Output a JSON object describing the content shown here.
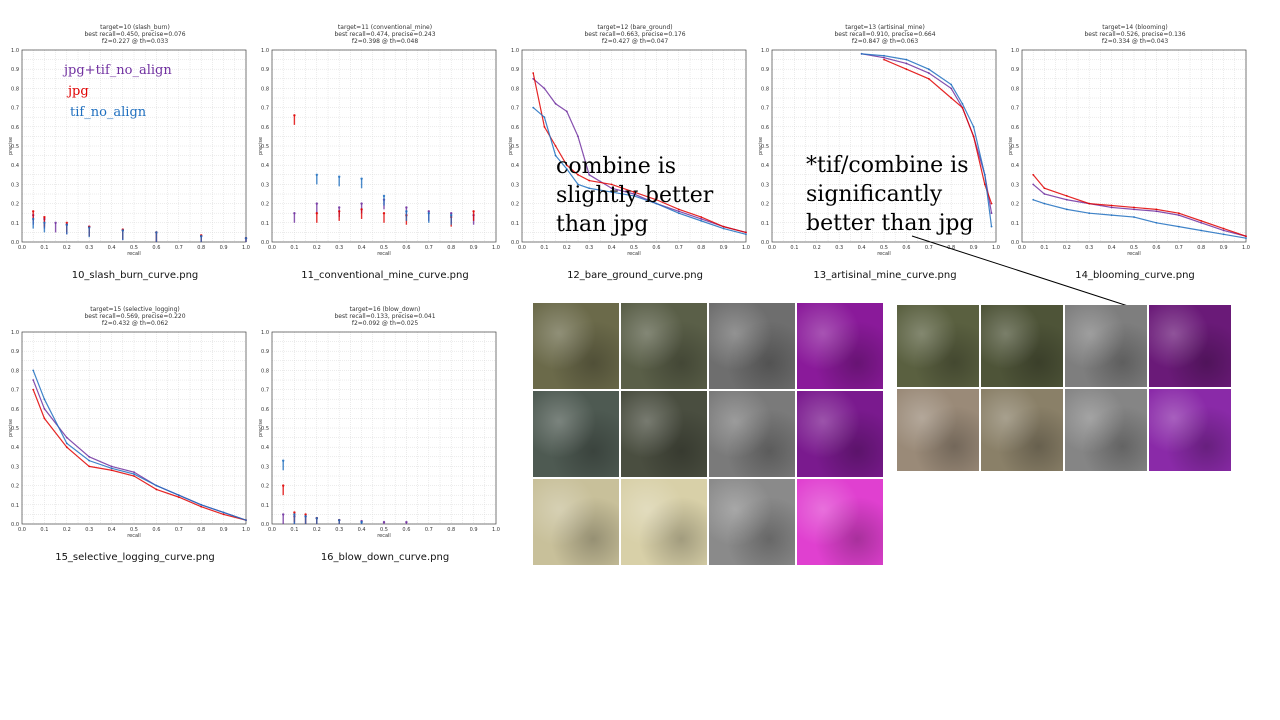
{
  "colors": {
    "combined": "#7030a0",
    "jpg": "#e00000",
    "tif": "#1f6fbf",
    "grid": "#d8d8d8"
  },
  "chart_data": [
    {
      "type": "scatter",
      "file": "10_slash_burn_curve.png",
      "title": [
        "target=10 (slash_burn)",
        "best recall=0.450, precise=0.076",
        "f2=0.227 @ th=0.033"
      ],
      "xlabel": "recall",
      "ylabel": "precise",
      "xlim": [
        0,
        1
      ],
      "ylim": [
        0,
        1
      ],
      "series": [
        {
          "name": "jpg+tif_no_align",
          "x": [
            0.05,
            0.1,
            0.15,
            0.2,
            0.3,
            0.45,
            0.6,
            0.8,
            1.0
          ],
          "y": [
            0.14,
            0.12,
            0.1,
            0.09,
            0.08,
            0.06,
            0.05,
            0.03,
            0.02
          ]
        },
        {
          "name": "jpg",
          "x": [
            0.05,
            0.1,
            0.2,
            0.3,
            0.45,
            0.6,
            0.8,
            1.0
          ],
          "y": [
            0.16,
            0.13,
            0.1,
            0.08,
            0.065,
            0.05,
            0.035,
            0.02
          ]
        },
        {
          "name": "tif_no_align",
          "x": [
            0.05,
            0.1,
            0.2,
            0.3,
            0.45,
            0.6,
            0.8,
            1.0
          ],
          "y": [
            0.12,
            0.1,
            0.09,
            0.075,
            0.06,
            0.05,
            0.03,
            0.02
          ]
        }
      ]
    },
    {
      "type": "scatter",
      "file": "11_conventional_mine_curve.png",
      "title": [
        "target=11 (conventional_mine)",
        "best recall=0.474, precise=0.243",
        "f2=0.398 @ th=0.048"
      ],
      "xlabel": "recall",
      "ylabel": "precise",
      "xlim": [
        0,
        1
      ],
      "ylim": [
        0,
        1
      ],
      "series": [
        {
          "name": "jpg+tif_no_align",
          "x": [
            0.1,
            0.2,
            0.3,
            0.4,
            0.5,
            0.6,
            0.7,
            0.8,
            0.9
          ],
          "y": [
            0.15,
            0.2,
            0.18,
            0.2,
            0.22,
            0.18,
            0.16,
            0.15,
            0.14
          ]
        },
        {
          "name": "jpg",
          "x": [
            0.1,
            0.2,
            0.3,
            0.4,
            0.5,
            0.6,
            0.8,
            0.9
          ],
          "y": [
            0.66,
            0.15,
            0.16,
            0.17,
            0.15,
            0.14,
            0.13,
            0.16
          ]
        },
        {
          "name": "tif_no_align",
          "x": [
            0.2,
            0.3,
            0.4,
            0.5,
            0.6,
            0.7,
            0.8
          ],
          "y": [
            0.35,
            0.34,
            0.33,
            0.24,
            0.16,
            0.15,
            0.14
          ]
        }
      ]
    },
    {
      "type": "line",
      "file": "12_bare_ground_curve.png",
      "title": [
        "target=12 (bare_ground)",
        "best recall=0.663, precise=0.176",
        "f2=0.427 @ th=0.047"
      ],
      "xlabel": "recall",
      "ylabel": "precise",
      "xlim": [
        0,
        1
      ],
      "ylim": [
        0,
        1
      ],
      "series": [
        {
          "name": "jpg+tif_no_align",
          "x": [
            0.05,
            0.1,
            0.15,
            0.2,
            0.25,
            0.3,
            0.4,
            0.5,
            0.6,
            0.7,
            0.8,
            0.9,
            1.0
          ],
          "y": [
            0.85,
            0.8,
            0.72,
            0.68,
            0.55,
            0.35,
            0.28,
            0.25,
            0.2,
            0.16,
            0.12,
            0.08,
            0.05
          ]
        },
        {
          "name": "jpg",
          "x": [
            0.05,
            0.1,
            0.15,
            0.2,
            0.25,
            0.3,
            0.4,
            0.5,
            0.6,
            0.7,
            0.8,
            0.9,
            1.0
          ],
          "y": [
            0.88,
            0.6,
            0.5,
            0.4,
            0.35,
            0.32,
            0.3,
            0.26,
            0.22,
            0.17,
            0.13,
            0.08,
            0.05
          ]
        },
        {
          "name": "tif_no_align",
          "x": [
            0.05,
            0.1,
            0.15,
            0.2,
            0.25,
            0.3,
            0.4,
            0.5,
            0.6,
            0.7,
            0.8,
            0.9,
            1.0
          ],
          "y": [
            0.7,
            0.65,
            0.45,
            0.38,
            0.3,
            0.28,
            0.26,
            0.24,
            0.2,
            0.15,
            0.11,
            0.07,
            0.04
          ]
        }
      ]
    },
    {
      "type": "line",
      "file": "13_artisinal_mine_curve.png",
      "title": [
        "target=13 (artisinal_mine)",
        "best recall=0.910, precise=0.664",
        "f2=0.847 @ th=0.063"
      ],
      "xlabel": "recall",
      "ylabel": "precise",
      "xlim": [
        0,
        1
      ],
      "ylim": [
        0,
        1
      ],
      "series": [
        {
          "name": "jpg+tif_no_align",
          "x": [
            0.4,
            0.5,
            0.6,
            0.7,
            0.8,
            0.85,
            0.9,
            0.95,
            0.98
          ],
          "y": [
            0.98,
            0.96,
            0.93,
            0.88,
            0.8,
            0.7,
            0.55,
            0.35,
            0.15
          ]
        },
        {
          "name": "jpg",
          "x": [
            0.5,
            0.6,
            0.7,
            0.8,
            0.85,
            0.9,
            0.95,
            0.98
          ],
          "y": [
            0.95,
            0.9,
            0.85,
            0.75,
            0.7,
            0.55,
            0.3,
            0.2
          ]
        },
        {
          "name": "tif_no_align",
          "x": [
            0.4,
            0.5,
            0.6,
            0.7,
            0.8,
            0.85,
            0.9,
            0.95,
            0.98
          ],
          "y": [
            0.98,
            0.97,
            0.95,
            0.9,
            0.82,
            0.72,
            0.6,
            0.35,
            0.08
          ]
        }
      ]
    },
    {
      "type": "line",
      "file": "14_blooming_curve.png",
      "title": [
        "target=14 (blooming)",
        "best recall=0.526, precise=0.136",
        "f2=0.334 @ th=0.043"
      ],
      "xlabel": "recall",
      "ylabel": "precise",
      "xlim": [
        0,
        1
      ],
      "ylim": [
        0,
        1
      ],
      "series": [
        {
          "name": "jpg+tif_no_align",
          "x": [
            0.05,
            0.1,
            0.2,
            0.3,
            0.4,
            0.5,
            0.6,
            0.7,
            0.8,
            0.9,
            1.0
          ],
          "y": [
            0.3,
            0.25,
            0.22,
            0.2,
            0.18,
            0.17,
            0.16,
            0.14,
            0.1,
            0.06,
            0.03
          ]
        },
        {
          "name": "jpg",
          "x": [
            0.05,
            0.1,
            0.2,
            0.3,
            0.4,
            0.5,
            0.6,
            0.7,
            0.8,
            0.9,
            1.0
          ],
          "y": [
            0.35,
            0.28,
            0.24,
            0.2,
            0.19,
            0.18,
            0.17,
            0.15,
            0.11,
            0.07,
            0.03
          ]
        },
        {
          "name": "tif_no_align",
          "x": [
            0.05,
            0.1,
            0.2,
            0.3,
            0.4,
            0.5,
            0.6,
            0.7,
            0.8,
            0.9,
            1.0
          ],
          "y": [
            0.22,
            0.2,
            0.17,
            0.15,
            0.14,
            0.13,
            0.1,
            0.08,
            0.06,
            0.04,
            0.02
          ]
        }
      ]
    },
    {
      "type": "line",
      "file": "15_selective_logging_curve.png",
      "title": [
        "target=15 (selective_logging)",
        "best recall=0.569, precise=0.220",
        "f2=0.432 @ th=0.062"
      ],
      "xlabel": "recall",
      "ylabel": "precise",
      "xlim": [
        0,
        1
      ],
      "ylim": [
        0,
        1
      ],
      "series": [
        {
          "name": "jpg+tif_no_align",
          "x": [
            0.05,
            0.1,
            0.2,
            0.3,
            0.4,
            0.5,
            0.6,
            0.7,
            0.8,
            0.9,
            1.0
          ],
          "y": [
            0.75,
            0.6,
            0.45,
            0.35,
            0.3,
            0.27,
            0.2,
            0.15,
            0.1,
            0.06,
            0.02
          ]
        },
        {
          "name": "jpg",
          "x": [
            0.05,
            0.1,
            0.2,
            0.3,
            0.4,
            0.5,
            0.6,
            0.7,
            0.8,
            0.9,
            1.0
          ],
          "y": [
            0.7,
            0.55,
            0.4,
            0.3,
            0.28,
            0.25,
            0.18,
            0.14,
            0.09,
            0.05,
            0.02
          ]
        },
        {
          "name": "tif_no_align",
          "x": [
            0.05,
            0.1,
            0.2,
            0.3,
            0.4,
            0.5,
            0.6,
            0.7,
            0.8,
            0.9,
            1.0
          ],
          "y": [
            0.8,
            0.65,
            0.42,
            0.33,
            0.29,
            0.26,
            0.2,
            0.15,
            0.1,
            0.06,
            0.02
          ]
        }
      ]
    },
    {
      "type": "scatter",
      "file": "16_blow_down_curve.png",
      "title": [
        "target=16 (blow_down)",
        "best recall=0.133, precise=0.041",
        "f2=0.092 @ th=0.025"
      ],
      "xlabel": "recall",
      "ylabel": "precise",
      "xlim": [
        0,
        1
      ],
      "ylim": [
        0,
        1
      ],
      "series": [
        {
          "name": "jpg+tif_no_align",
          "x": [
            0.05,
            0.1,
            0.15,
            0.2,
            0.3,
            0.4,
            0.5,
            0.6
          ],
          "y": [
            0.05,
            0.04,
            0.04,
            0.03,
            0.02,
            0.015,
            0.01,
            0.01
          ]
        },
        {
          "name": "jpg",
          "x": [
            0.05,
            0.1,
            0.15,
            0.2,
            0.3
          ],
          "y": [
            0.2,
            0.06,
            0.05,
            0.03,
            0.02
          ]
        },
        {
          "name": "tif_no_align",
          "x": [
            0.05,
            0.1,
            0.15,
            0.2,
            0.3,
            0.4
          ],
          "y": [
            0.33,
            0.05,
            0.04,
            0.03,
            0.02,
            0.01
          ]
        }
      ]
    }
  ],
  "legend": {
    "items": [
      "jpg+tif_no_align",
      "jpg",
      "tif_no_align"
    ]
  },
  "notes": {
    "bare_ground": "combine is\nslightly better\nthan jpg",
    "artisinal_mine": "*tif/combine is\nsignificantly\nbetter than jpg"
  },
  "thumbnails": {
    "left_rows": [
      [
        "#6b6a4a",
        "#5a5f48",
        "#6e6e6e",
        "#8a1a9a"
      ],
      [
        "#4e5a52",
        "#4a4e40",
        "#7a7a7a",
        "#7a1a8e"
      ],
      [
        "#c8c09a",
        "#d8d0a8",
        "#8a8a8a",
        "#e040d0"
      ]
    ],
    "right_rows": [
      [
        "#5a6040",
        "#4e5438",
        "#7e7e7e",
        "#6a1a78"
      ],
      [
        "#9a8a78",
        "#8a8068",
        "#858585",
        "#8a2aa8"
      ]
    ]
  }
}
